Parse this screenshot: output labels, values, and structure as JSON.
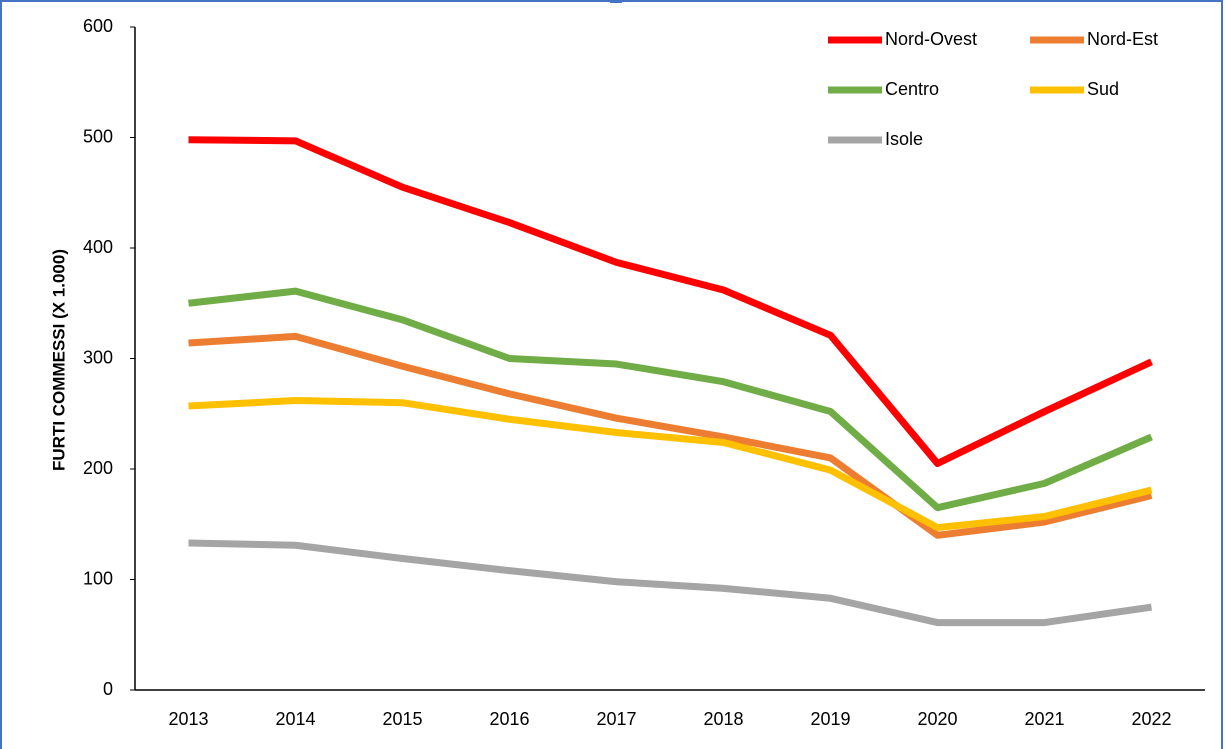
{
  "chart_data": {
    "type": "line",
    "y_label": "FURTI COMMESSI (X 1.000)",
    "categories": [
      "2013",
      "2014",
      "2015",
      "2016",
      "2017",
      "2018",
      "2019",
      "2020",
      "2021",
      "2022"
    ],
    "series": [
      {
        "name": "Nord-Ovest",
        "color": "#ff0000",
        "values": [
          498,
          497,
          455,
          423,
          387,
          362,
          321,
          205,
          252,
          297
        ]
      },
      {
        "name": "Nord-Est",
        "color": "#ed7d31",
        "values": [
          314,
          320,
          293,
          268,
          246,
          229,
          210,
          140,
          152,
          176
        ]
      },
      {
        "name": "Centro",
        "color": "#70ad47",
        "values": [
          350,
          361,
          335,
          300,
          295,
          279,
          252,
          165,
          187,
          229
        ]
      },
      {
        "name": "Sud",
        "color": "#ffc000",
        "values": [
          257,
          262,
          260,
          245,
          233,
          224,
          199,
          147,
          157,
          181
        ]
      },
      {
        "name": "Isole",
        "color": "#a5a5a5",
        "values": [
          133,
          131,
          119,
          108,
          98,
          92,
          83,
          61,
          61,
          75
        ]
      }
    ],
    "ylim": [
      0,
      600
    ],
    "yticks": [
      0,
      100,
      200,
      300,
      400,
      500,
      600
    ],
    "grid": false,
    "legend": "upper right"
  }
}
